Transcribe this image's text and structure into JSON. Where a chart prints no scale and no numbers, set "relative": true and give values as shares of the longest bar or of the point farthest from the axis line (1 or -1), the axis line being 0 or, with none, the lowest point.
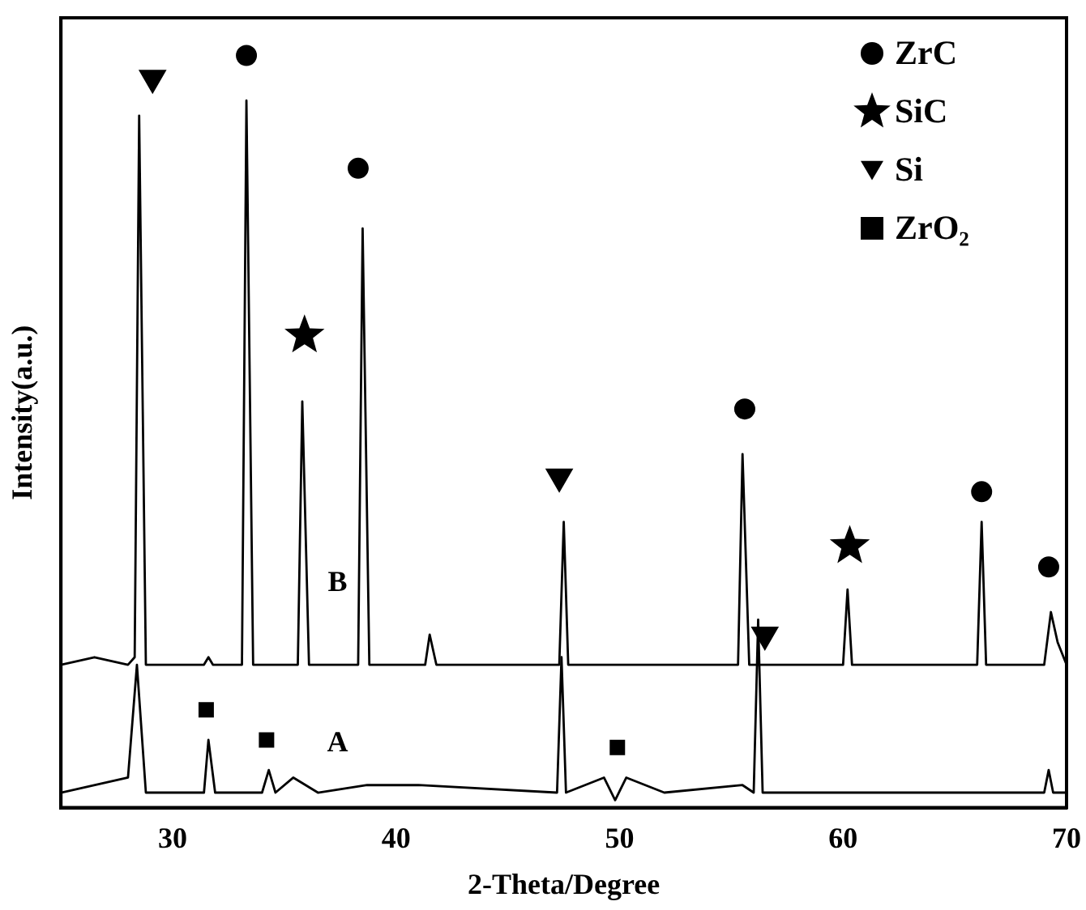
{
  "chart_data": {
    "type": "line",
    "relative": true,
    "xlabel": "2-Theta/Degree",
    "ylabel": "Intensity(a.u.)",
    "xlim": [
      25,
      70
    ],
    "xticks": [
      30,
      40,
      50,
      60,
      70
    ],
    "grid": false,
    "legend": "top right",
    "series": [
      {
        "color": "#000000",
        "marker": "none",
        "x": [
          25,
          26.5,
          28.0,
          28.3,
          28.5,
          28.8,
          31.4,
          31.6,
          31.8,
          33.1,
          33.3,
          33.6,
          35.6,
          35.8,
          36.1,
          38.3,
          38.5,
          38.8,
          41.3,
          41.5,
          41.8,
          47.3,
          47.5,
          47.7,
          55.3,
          55.5,
          55.8,
          60.0,
          60.2,
          60.4,
          66.0,
          66.2,
          66.4,
          69.0,
          69.3,
          69.6,
          70
        ],
        "values": [
          0.19,
          0.2,
          0.19,
          0.2,
          0.92,
          0.19,
          0.19,
          0.2,
          0.19,
          0.19,
          0.94,
          0.19,
          0.19,
          0.54,
          0.19,
          0.19,
          0.77,
          0.19,
          0.19,
          0.23,
          0.19,
          0.19,
          0.38,
          0.19,
          0.19,
          0.47,
          0.19,
          0.19,
          0.29,
          0.19,
          0.19,
          0.38,
          0.19,
          0.19,
          0.26,
          0.22,
          0.19
        ]
      },
      {
        "color": "#000000",
        "marker": "none",
        "x": [
          25,
          28.0,
          28.4,
          28.8,
          31.4,
          31.6,
          31.9,
          34.0,
          34.3,
          34.6,
          35.4,
          36.5,
          38.7,
          41.0,
          47.2,
          47.4,
          47.6,
          49.3,
          49.8,
          50.3,
          52,
          55.5,
          56.0,
          56.2,
          56.4,
          60,
          63,
          69.0,
          69.2,
          69.4,
          70
        ],
        "values": [
          0.02,
          0.04,
          0.19,
          0.02,
          0.02,
          0.09,
          0.02,
          0.02,
          0.05,
          0.02,
          0.04,
          0.02,
          0.03,
          0.03,
          0.02,
          0.2,
          0.02,
          0.04,
          0.01,
          0.04,
          0.02,
          0.03,
          0.02,
          0.25,
          0.02,
          0.02,
          0.02,
          0.02,
          0.05,
          0.02,
          0.02
        ]
      },
      {
        "type": "scatter",
        "name": "ZrC",
        "color": "#000000",
        "marker": "circle",
        "x": [
          33.3,
          38.3,
          55.6,
          66.2,
          69.2
        ],
        "values": [
          1.0,
          0.85,
          0.53,
          0.42,
          0.32
        ]
      },
      {
        "type": "scatter",
        "name": "SiC",
        "color": "#000000",
        "marker": "star",
        "x": [
          35.9,
          60.3
        ],
        "values": [
          0.63,
          0.35
        ]
      },
      {
        "type": "scatter",
        "name": "Si",
        "color": "#000000",
        "marker": "triangle",
        "x": [
          29.1,
          47.3,
          56.5
        ],
        "values": [
          0.97,
          0.44,
          0.23
        ]
      },
      {
        "type": "scatter",
        "name": "ZrO₂",
        "color": "#000000",
        "marker": "square",
        "x": [
          31.5,
          34.2,
          49.9
        ],
        "values": [
          0.13,
          0.09,
          0.08
        ]
      }
    ],
    "annotations": [
      "B",
      "A"
    ]
  }
}
